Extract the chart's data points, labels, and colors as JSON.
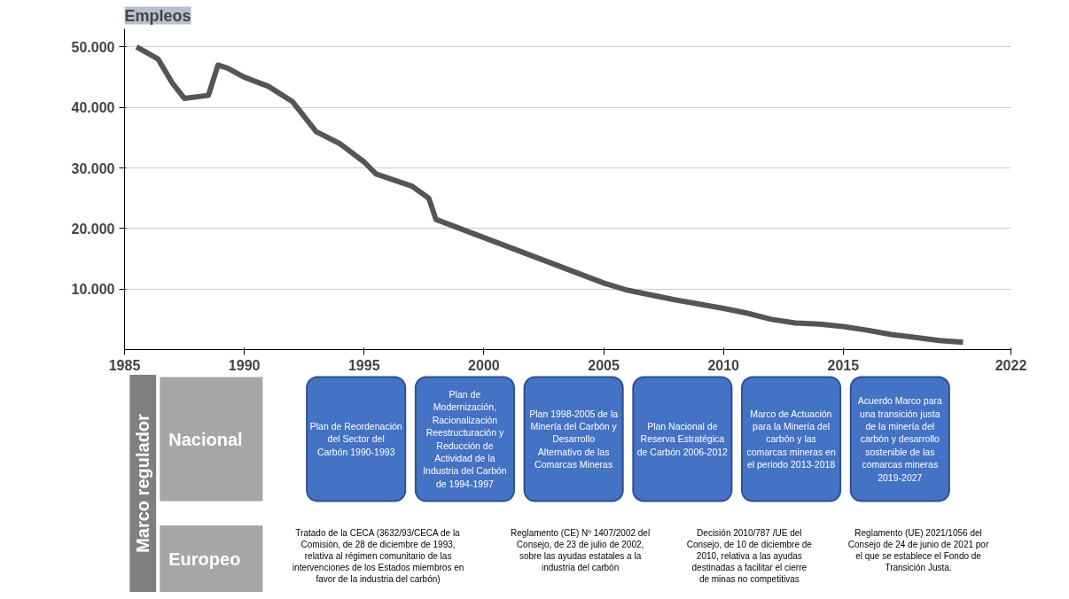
{
  "chart_data": {
    "type": "line",
    "title": "Empleos",
    "x": [
      1985.5,
      1986.4,
      1987,
      1987.5,
      1988.5,
      1988.9,
      1989.3,
      1990,
      1991,
      1992,
      1993,
      1994,
      1995,
      1995.5,
      1997,
      1997.7,
      1998,
      1999,
      2000,
      2001,
      2002,
      2003,
      2004,
      2005,
      2006,
      2007,
      2008,
      2009,
      2010,
      2011,
      2012,
      2013,
      2014,
      2015,
      2016,
      2017,
      2018,
      2019,
      2020
    ],
    "series": [
      {
        "color": "#555555",
        "values": [
          50000,
          48000,
          44000,
          41500,
          42000,
          47000,
          46500,
          45000,
          43500,
          41000,
          36000,
          34000,
          31000,
          29000,
          27000,
          25000,
          21500,
          20000,
          18500,
          17000,
          15500,
          14000,
          12500,
          11000,
          9800,
          9000,
          8200,
          7500,
          6800,
          6000,
          5000,
          4400,
          4200,
          3800,
          3200,
          2500,
          2000,
          1500,
          1200
        ]
      }
    ],
    "xlim": [
      1985,
      2022
    ],
    "xticks": [
      1985,
      1990,
      1995,
      2000,
      2005,
      2010,
      2015,
      2022
    ],
    "ylim": [
      0,
      53000
    ],
    "yticks": [
      {
        "value": 10000,
        "label": "10.000"
      },
      {
        "value": 20000,
        "label": "20.000"
      },
      {
        "value": 30000,
        "label": "30.000"
      },
      {
        "value": 40000,
        "label": "40.000"
      },
      {
        "value": 50000,
        "label": "50.000"
      }
    ],
    "grid": "y",
    "marker": "none",
    "line_style": "solid",
    "annotations": [
      "Marco regulador",
      "Nacional",
      "Europeo",
      "Plan de Reordenación del Sector del Carbón 1990-1993",
      "Plan de Modernización, Racionalización Reestructuración y Reducción de Actividad de la Industria del Carbón de 1994-1997",
      "Plan 1998-2005 de la Minería del Carbón y Desarrollo Alternativo de las Comarcas Mineras",
      "Plan Nacional de Reserva Estratégica de Carbón 2006-2012",
      "Marco de Actuación para la Minería del carbón y las comarcas mineras en el periodo 2013-2018",
      "Acuerdo Marco para una transición justa de la minería del carbón y desarrollo sostenible de las comarcas mineras 2019-2027",
      "Tratado de la CECA (3632/93/CECA de la Comisión, de 28 de diciembre de 1993, relativa al régimen comunitario de las intervenciones de los Estados miembros en favor de la industria del carbón)",
      "Reglamento (CE) Nº 1407/2002 del Consejo, de 23 de julio de 2002, sobre las ayudas estatales a la industria del carbón",
      "Decisión 2010/787 /UE del Consejo, de 10 de diciembre de 2010, relativa a las ayudas destinadas a facilitar el cierre de minas no competitivas",
      "Reglamento (UE) 2021/1056 del Consejo de 24 de junio de 2021 por el que se establece el Fondo de Transición Justa."
    ]
  }
}
